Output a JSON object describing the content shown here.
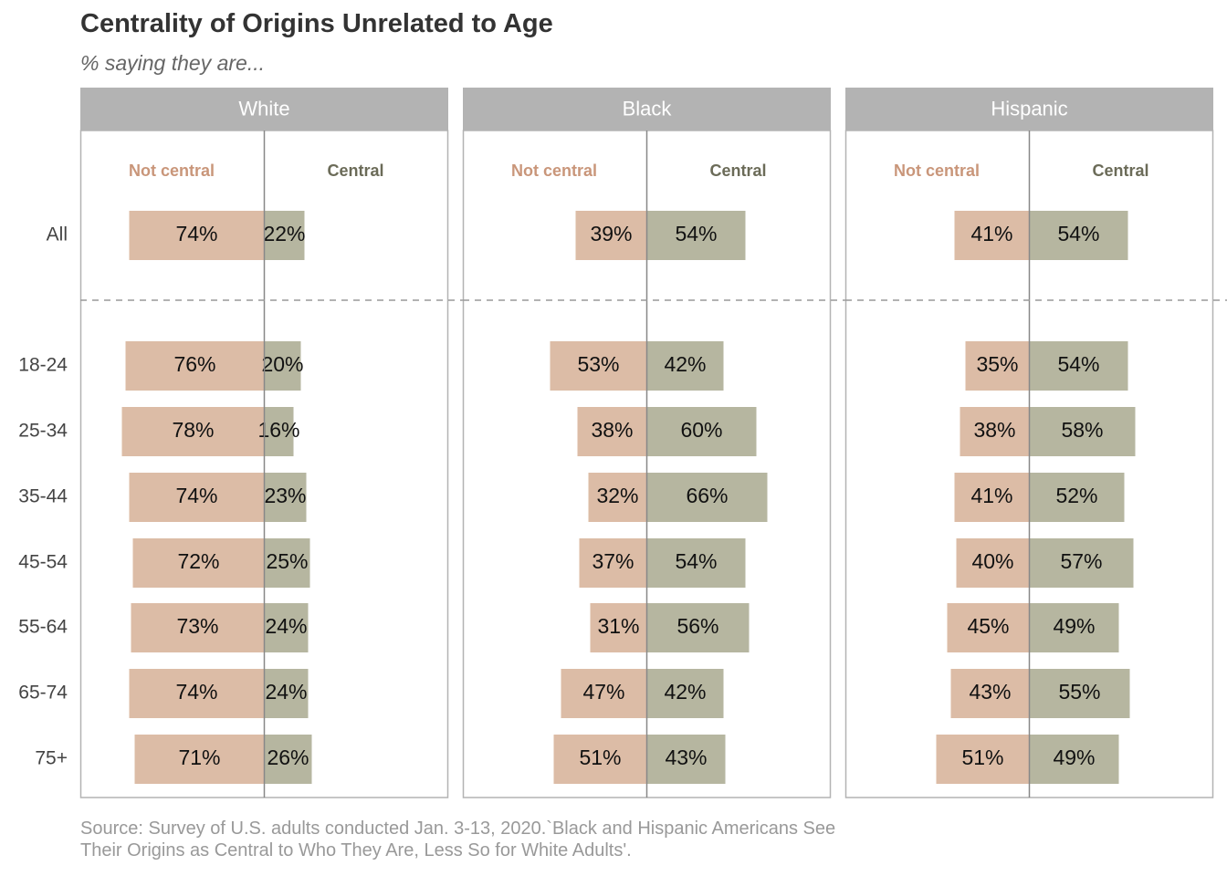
{
  "title": "Centrality of Origins Unrelated to Age",
  "subtitle": "% saying they are...",
  "source_line1": "Source: Survey of U.S. adults conducted Jan. 3-13, 2020.`Black and Hispanic Americans See",
  "source_line2": "Their Origins as Central to Who They Are, Less So for White Adults'.",
  "colors": {
    "not_central": "#dcbca6",
    "central": "#b6b6a0",
    "not_central_text": "#c9967a",
    "central_text": "#6b6b58",
    "strip": "#b3b3b3",
    "panel_border": "#b3b3b3",
    "axis_line": "#888888"
  },
  "chart_data": {
    "type": "bar",
    "orientation": "horizontal-diverging",
    "categories": [
      "All",
      "18-24",
      "25-34",
      "35-44",
      "45-54",
      "55-64",
      "65-74",
      "75+"
    ],
    "column_headers": {
      "not_central": "Not central",
      "central": "Central"
    },
    "panels": [
      {
        "name": "White",
        "not_central": [
          74,
          76,
          78,
          74,
          72,
          73,
          74,
          71
        ],
        "central": [
          22,
          20,
          16,
          23,
          25,
          24,
          24,
          26
        ]
      },
      {
        "name": "Black",
        "not_central": [
          39,
          53,
          38,
          32,
          37,
          31,
          47,
          51
        ],
        "central": [
          54,
          42,
          60,
          66,
          54,
          56,
          42,
          43
        ]
      },
      {
        "name": "Hispanic",
        "not_central": [
          41,
          35,
          38,
          41,
          40,
          45,
          43,
          51
        ],
        "central": [
          54,
          54,
          58,
          52,
          57,
          49,
          55,
          49
        ]
      }
    ],
    "value_suffix": "%",
    "separator_after_category": "All",
    "legend": "none",
    "grid": false
  }
}
